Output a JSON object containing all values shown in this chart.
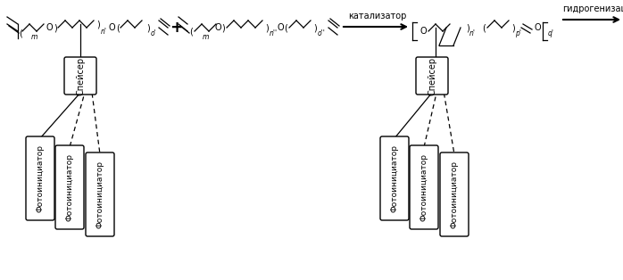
{
  "bg_color": "#ffffff",
  "fig_width": 6.98,
  "fig_height": 3.14,
  "dpi": 100,
  "label_spacer": "Спейсер",
  "label_photo": "Фотоинициатор",
  "label_catalyst": "катализатор",
  "label_hydro": "гидрогенизация"
}
